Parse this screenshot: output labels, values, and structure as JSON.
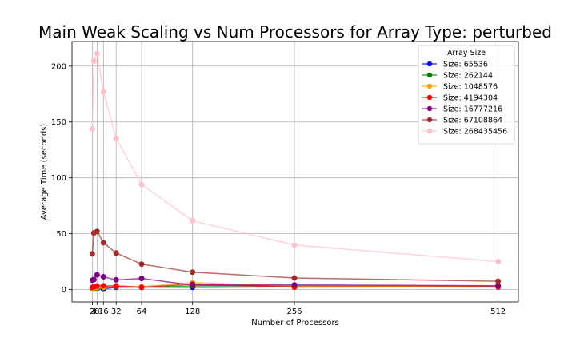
{
  "chart_data": {
    "type": "line",
    "title": "Main Weak Scaling vs Num Processors for Array Type: perturbed",
    "xlabel": "Number of Processors",
    "ylabel": "Average Time (seconds)",
    "x": [
      2,
      4,
      8,
      16,
      32,
      64,
      128,
      256,
      512
    ],
    "x_ticks": [
      2,
      4,
      8,
      16,
      32,
      64,
      128,
      256,
      512
    ],
    "x_tick_labels": [
      "2",
      "4",
      "8",
      "16",
      "32",
      "64",
      "128",
      "256",
      "512"
    ],
    "y_ticks": [
      0,
      50,
      100,
      150,
      200
    ],
    "xlim": [
      -23.5,
      537.5
    ],
    "ylim": [
      -11,
      222
    ],
    "grid": true,
    "legend_title": "Array Size",
    "legend_position": "upper right",
    "series": [
      {
        "name": "Size: 65536",
        "color": "#0000ff",
        "values": [
          0.8,
          0.5,
          0.6,
          0.4,
          2.1,
          2.2,
          2.0,
          2.5,
          2.3
        ]
      },
      {
        "name": "Size: 262144",
        "color": "#008000",
        "values": [
          0.9,
          1.0,
          1.2,
          1.5,
          2.6,
          2.3,
          3.3,
          3.5,
          2.8
        ]
      },
      {
        "name": "Size: 1048576",
        "color": "#ffa500",
        "values": [
          1.2,
          1.5,
          1.8,
          2.2,
          3.2,
          2.6,
          6.2,
          3.2,
          3.0
        ]
      },
      {
        "name": "Size: 4194304",
        "color": "#ff0000",
        "values": [
          1.9,
          2.5,
          3.2,
          3.4,
          3.3,
          2.0,
          4.9,
          2.2,
          2.5
        ]
      },
      {
        "name": "Size: 16777216",
        "color": "#800080",
        "values": [
          8.5,
          9.0,
          13.2,
          11.5,
          8.7,
          10.0,
          4.0,
          4.2,
          3.5
        ]
      },
      {
        "name": "Size: 67108864",
        "color": "#a52a2a",
        "values": [
          32.0,
          50.7,
          52.0,
          42.0,
          32.8,
          22.8,
          15.6,
          10.4,
          7.5
        ]
      },
      {
        "name": "Size: 268435456",
        "color": "#ffc0cb",
        "values": [
          143.8,
          204.4,
          211.3,
          177.0,
          135.4,
          94.0,
          61.6,
          39.9,
          25.1
        ]
      }
    ]
  }
}
